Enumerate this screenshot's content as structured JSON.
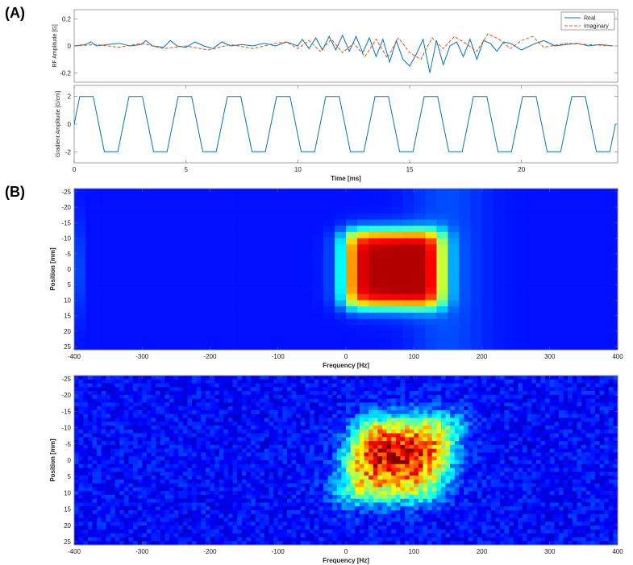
{
  "panels": {
    "a_label": "(A)",
    "b_label": "(B)"
  },
  "chart_data": [
    {
      "id": "rf",
      "type": "line",
      "ylabel": "RF Amplitude [G]",
      "xlim": [
        0,
        24.3
      ],
      "ylim": [
        -0.27,
        0.27
      ],
      "yticks": [
        "0.2",
        "0",
        "-0.2"
      ],
      "ytick_values": [
        0.2,
        0,
        -0.2
      ],
      "legend": "top-right",
      "series": [
        {
          "name": "Real",
          "color": "#0072BD",
          "style": "solid",
          "x": [
            0,
            0.5,
            0.75,
            1,
            1.5,
            2,
            2.5,
            3,
            3.2,
            3.5,
            4,
            4.3,
            4.6,
            5,
            5.4,
            5.8,
            6.2,
            6.6,
            7,
            7.5,
            8,
            8.5,
            9,
            9.5,
            10,
            10.2,
            10.5,
            10.8,
            11.1,
            11.4,
            11.7,
            12,
            12.3,
            12.6,
            12.9,
            13.2,
            13.5,
            13.8,
            14.1,
            14.4,
            14.7,
            15,
            15.3,
            15.6,
            15.9,
            16.2,
            16.5,
            16.8,
            17.1,
            17.4,
            17.7,
            18,
            18.3,
            18.6,
            18.9,
            19.2,
            19.5,
            20,
            20.5,
            21,
            21.5,
            22,
            22.5,
            23,
            23.5,
            24.1
          ],
          "y": [
            0,
            0.01,
            0.03,
            0,
            0.01,
            0.02,
            0,
            0.01,
            0.04,
            0,
            -0.01,
            0.04,
            0,
            -0.01,
            0.03,
            0,
            -0.02,
            0.03,
            0,
            0.01,
            0,
            0.02,
            0,
            0.03,
            0,
            0.05,
            -0.02,
            0.06,
            -0.03,
            0.07,
            -0.03,
            0.08,
            -0.04,
            0.07,
            -0.05,
            0.06,
            -0.08,
            0.05,
            -0.12,
            0.04,
            -0.1,
            -0.15,
            -0.06,
            0.05,
            -0.2,
            0.04,
            -0.14,
            0,
            0.03,
            -0.08,
            0.05,
            -0.1,
            0.04,
            0.02,
            -0.04,
            0.03,
            0.02,
            -0.03,
            0.01,
            0.04,
            0,
            0.01,
            0.02,
            0,
            0.01,
            0
          ],
          "y_note": ""
        },
        {
          "name": "Imaginary",
          "color": "#D95319",
          "style": "dashed",
          "x": [
            0,
            1,
            2,
            3,
            4,
            5,
            6,
            7,
            8,
            9,
            9.5,
            10,
            10.5,
            11,
            11.5,
            12,
            12.5,
            13,
            13.5,
            14,
            14.5,
            15,
            15.5,
            16,
            16.5,
            17,
            17.5,
            18,
            18.5,
            19,
            19.5,
            20,
            20.5,
            21,
            22,
            23,
            24.1
          ],
          "y": [
            0,
            0.01,
            -0.01,
            0.02,
            -0.02,
            0,
            -0.03,
            0.01,
            -0.02,
            0.02,
            0.03,
            -0.02,
            0.04,
            -0.04,
            0.05,
            -0.05,
            0.02,
            -0.08,
            0.05,
            -0.09,
            0.06,
            -0.05,
            -0.1,
            0.06,
            -0.02,
            0.07,
            0.02,
            -0.04,
            0.09,
            0.05,
            -0.02,
            0.04,
            0.07,
            -0.01,
            0.02,
            0.01,
            0
          ]
        }
      ]
    },
    {
      "id": "gradient",
      "type": "line",
      "xlabel": "Time [ms]",
      "ylabel": "Gradient Amplitude [G/cm]",
      "xlim": [
        0,
        24.3
      ],
      "ylim": [
        -2.8,
        2.8
      ],
      "xticks": [
        "0",
        "5",
        "10",
        "15",
        "20"
      ],
      "xtick_values": [
        0,
        5,
        10,
        15,
        20
      ],
      "yticks": [
        "2",
        "0",
        "-2"
      ],
      "ytick_values": [
        2,
        0,
        -2
      ],
      "series": [
        {
          "name": "",
          "color": "#0072BD",
          "style": "solid",
          "period_ms": 2.2,
          "amplitude": 2,
          "plateau_ms": 0.6,
          "ramp_ms": 0.5,
          "cycles": 11,
          "final_peak": 2.4
        }
      ]
    },
    {
      "id": "profile_sim",
      "type": "heatmap",
      "xlabel": "Frequency [Hz]",
      "ylabel": "Position [mm]",
      "xlim": [
        -400,
        400
      ],
      "ylim": [
        -26,
        26
      ],
      "xticks": [
        "-400",
        "-300",
        "-200",
        "-100",
        "0",
        "100",
        "200",
        "300",
        "400"
      ],
      "xtick_values": [
        -400,
        -300,
        -200,
        -100,
        0,
        100,
        200,
        300,
        400
      ],
      "yticks": [
        "-25",
        "-20",
        "-15",
        "-10",
        "-5",
        "0",
        "5",
        "10",
        "15",
        "20",
        "25"
      ],
      "ytick_values": [
        -25,
        -20,
        -15,
        -10,
        -5,
        0,
        5,
        10,
        15,
        20,
        25
      ],
      "colormap": "jet",
      "block": {
        "freq_range": [
          0,
          140
        ],
        "pos_range": [
          -12,
          12
        ]
      },
      "noise": 0.0
    },
    {
      "id": "profile_meas",
      "type": "heatmap",
      "xlabel": "Frequency [Hz]",
      "ylabel": "Position [mm]",
      "xlim": [
        -400,
        400
      ],
      "ylim": [
        -26,
        26
      ],
      "xticks": [
        "-400",
        "-300",
        "-200",
        "-100",
        "0",
        "100",
        "200",
        "300",
        "400"
      ],
      "xtick_values": [
        -400,
        -300,
        -200,
        -100,
        0,
        100,
        200,
        300,
        400
      ],
      "yticks": [
        "-25",
        "-20",
        "-15",
        "-10",
        "-5",
        "0",
        "5",
        "10",
        "15",
        "20",
        "25"
      ],
      "ytick_values": [
        -25,
        -20,
        -15,
        -10,
        -5,
        0,
        5,
        10,
        15,
        20,
        25
      ],
      "colormap": "jet",
      "block": {
        "freq_range": [
          5,
          150
        ],
        "pos_range": [
          -13,
          12
        ]
      },
      "noise": 0.12
    }
  ]
}
